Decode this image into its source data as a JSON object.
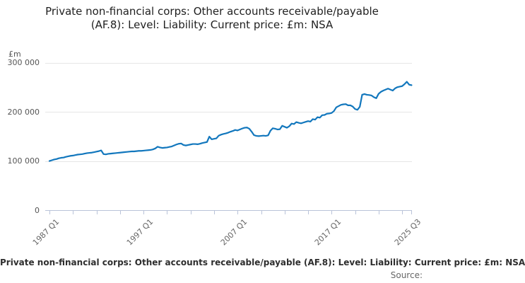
{
  "chart_data": {
    "type": "line",
    "title": "Private non-financial corps: Other accounts receivable/payable (AF.8): Level: Liability: Current price: £m: NSA",
    "unit_label": "£m",
    "footer_series_label": "Private non-financial corps: Other accounts receivable/payable (AF.8): Level: Liability: Current price: £m: NSA",
    "source_label": "Source:",
    "legend_position": "bottom",
    "grid": "horizontal-only",
    "x_axis": {
      "frequency": "quarterly",
      "start": "1987 Q1",
      "end": "2025 Q3",
      "minor_tick_every_quarters": 10,
      "labeled_ticks": [
        {
          "q": 0,
          "label": "1987 Q1"
        },
        {
          "q": 40,
          "label": "1997 Q1"
        },
        {
          "q": 80,
          "label": "2007 Q1"
        },
        {
          "q": 120,
          "label": "2017 Q1"
        },
        {
          "q": 154,
          "label": "2025 Q3"
        }
      ]
    },
    "y_axis": {
      "range": [
        0,
        312000
      ],
      "ticks": [
        {
          "value": 300000,
          "label": "300 000"
        },
        {
          "value": 200000,
          "label": "200 000"
        },
        {
          "value": 100000,
          "label": "100 000"
        },
        {
          "value": 0,
          "label": "0"
        }
      ]
    },
    "series": [
      {
        "name": "Private non-financial corps: Other accounts receivable/payable (AF.8): Level: Liability: Current price: £m: NSA",
        "values": [
          100500,
          102000,
          103500,
          104500,
          106000,
          107000,
          107500,
          109000,
          110000,
          111000,
          111500,
          112500,
          113500,
          114000,
          114500,
          115500,
          116500,
          117000,
          117500,
          118500,
          119500,
          120500,
          122000,
          114500,
          114000,
          115000,
          115500,
          116000,
          116500,
          117000,
          117500,
          118000,
          118500,
          119000,
          119500,
          120000,
          120000,
          120500,
          121000,
          121000,
          121500,
          122000,
          122500,
          123000,
          124000,
          126000,
          129500,
          128000,
          127000,
          127500,
          128000,
          129000,
          130000,
          132000,
          134000,
          135500,
          136000,
          133000,
          132000,
          133000,
          134000,
          135000,
          135000,
          134500,
          135500,
          137000,
          138000,
          139000,
          150000,
          144500,
          145500,
          146500,
          152000,
          154000,
          155500,
          156500,
          158000,
          160000,
          161500,
          163500,
          162500,
          164500,
          166500,
          168000,
          168500,
          166000,
          160000,
          153000,
          151500,
          151000,
          151500,
          152000,
          151500,
          152500,
          162000,
          167000,
          166000,
          164500,
          165000,
          172000,
          170000,
          168000,
          171000,
          176500,
          175500,
          179500,
          178000,
          177000,
          178500,
          180000,
          181500,
          180500,
          185500,
          184500,
          189500,
          188500,
          193500,
          194000,
          196500,
          197000,
          198000,
          202000,
          209500,
          212000,
          214500,
          215500,
          216000,
          213500,
          213500,
          211000,
          206000,
          204500,
          210500,
          235000,
          236500,
          235000,
          234500,
          233500,
          230000,
          228000,
          237000,
          241000,
          243500,
          245500,
          247500,
          245500,
          243500,
          248000,
          250500,
          251500,
          252500,
          256500,
          261500,
          255500,
          254500
        ]
      }
    ],
    "colors": {
      "line": "#1277bd",
      "grid": "#e6e6e6",
      "axis": "#b9c3d9",
      "title_text": "#1f1f1f",
      "tick_text": "#555555",
      "footer_text": "#2e2e2e",
      "source_text": "#666666"
    }
  }
}
